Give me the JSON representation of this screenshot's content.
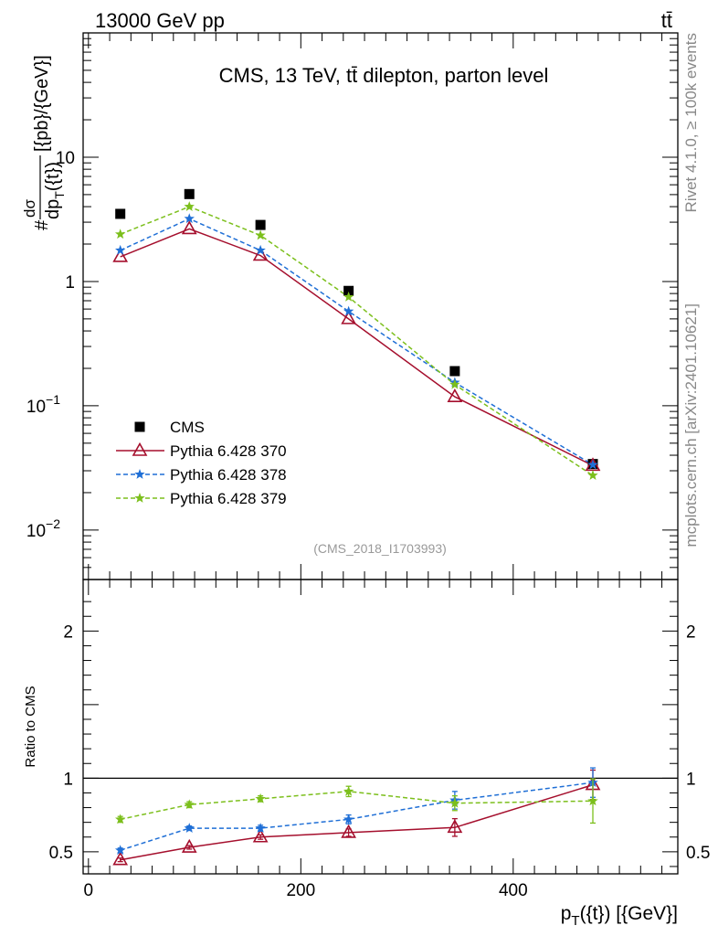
{
  "header": {
    "energy_label": "13000 GeV pp",
    "process_label": "tt̄"
  },
  "side_labels": {
    "rivet": "Rivet 4.1.0, ≥ 100k events",
    "mcplots": "mcplots.cern.ch [arXiv:2401.10621]"
  },
  "colors": {
    "cms": "#000000",
    "p370": "#a50f2d",
    "p378": "#1f6fd6",
    "p379": "#7cbf1c"
  },
  "chart_data": [
    {
      "type": "scatter",
      "title": "CMS, 13 TeV, tt̄ dilepton, parton level",
      "analysis_id": "(CMS_2018_I1703993)",
      "ylabel": "#dσ/dp_T({t})[{pb}/{GeV}]",
      "yscale": "log",
      "ylim": [
        0.004,
        100
      ],
      "xlim": [
        -5,
        555
      ],
      "y_ticks": [
        {
          "value": 10,
          "label": "10"
        },
        {
          "value": 1,
          "label": "1"
        },
        {
          "value": 0.1,
          "label": "10",
          "exp": "−1"
        },
        {
          "value": 0.01,
          "label": "10",
          "exp": "−2"
        }
      ],
      "x": [
        30,
        95,
        162,
        245,
        345,
        475
      ],
      "series": [
        {
          "name": "CMS",
          "key": "cms",
          "style": "square",
          "values": [
            3.5,
            5.05,
            2.85,
            0.84,
            0.19,
            0.034
          ]
        },
        {
          "name": "Pythia 6.428 370",
          "key": "p370",
          "style": "triangle",
          "values": [
            1.58,
            2.65,
            1.62,
            0.5,
            0.118,
            0.033
          ]
        },
        {
          "name": "Pythia 6.428 378",
          "key": "p378",
          "style": "star",
          "values": [
            1.78,
            3.2,
            1.78,
            0.575,
            0.154,
            0.0335
          ]
        },
        {
          "name": "Pythia 6.428 379",
          "key": "p379",
          "style": "star",
          "values": [
            2.4,
            4.0,
            2.35,
            0.75,
            0.148,
            0.0275
          ]
        }
      ]
    },
    {
      "type": "line",
      "ylabel": "Ratio to CMS",
      "xlabel": "p_T({t}) [{GeV}]",
      "ylim": [
        0.35,
        2.35
      ],
      "xlim": [
        -5,
        555
      ],
      "y_ticks": [
        {
          "value": 2,
          "label": "2"
        },
        {
          "value": 1,
          "label": "1"
        },
        {
          "value": 0.5,
          "label": "0.5"
        }
      ],
      "x_ticks": [
        {
          "value": 0,
          "label": "0"
        },
        {
          "value": 200,
          "label": "200"
        },
        {
          "value": 400,
          "label": "400"
        }
      ],
      "reference": 1,
      "x": [
        30,
        95,
        162,
        245,
        345,
        475
      ],
      "series": [
        {
          "name": "Pythia 6.428 370",
          "key": "p370",
          "style": "triangle",
          "values": [
            0.445,
            0.53,
            0.6,
            0.63,
            0.665,
            0.955
          ],
          "errors": [
            0.012,
            0.012,
            0.015,
            0.025,
            0.06,
            0.1
          ]
        },
        {
          "name": "Pythia 6.428 378",
          "key": "p378",
          "style": "star",
          "values": [
            0.51,
            0.66,
            0.66,
            0.72,
            0.85,
            0.97
          ],
          "errors": [
            0.015,
            0.015,
            0.02,
            0.03,
            0.06,
            0.1
          ]
        },
        {
          "name": "Pythia 6.428 379",
          "key": "p379",
          "style": "star",
          "values": [
            0.72,
            0.82,
            0.86,
            0.91,
            0.83,
            0.845
          ],
          "errors": [
            0.02,
            0.02,
            0.02,
            0.035,
            0.05,
            0.15
          ]
        }
      ]
    }
  ]
}
